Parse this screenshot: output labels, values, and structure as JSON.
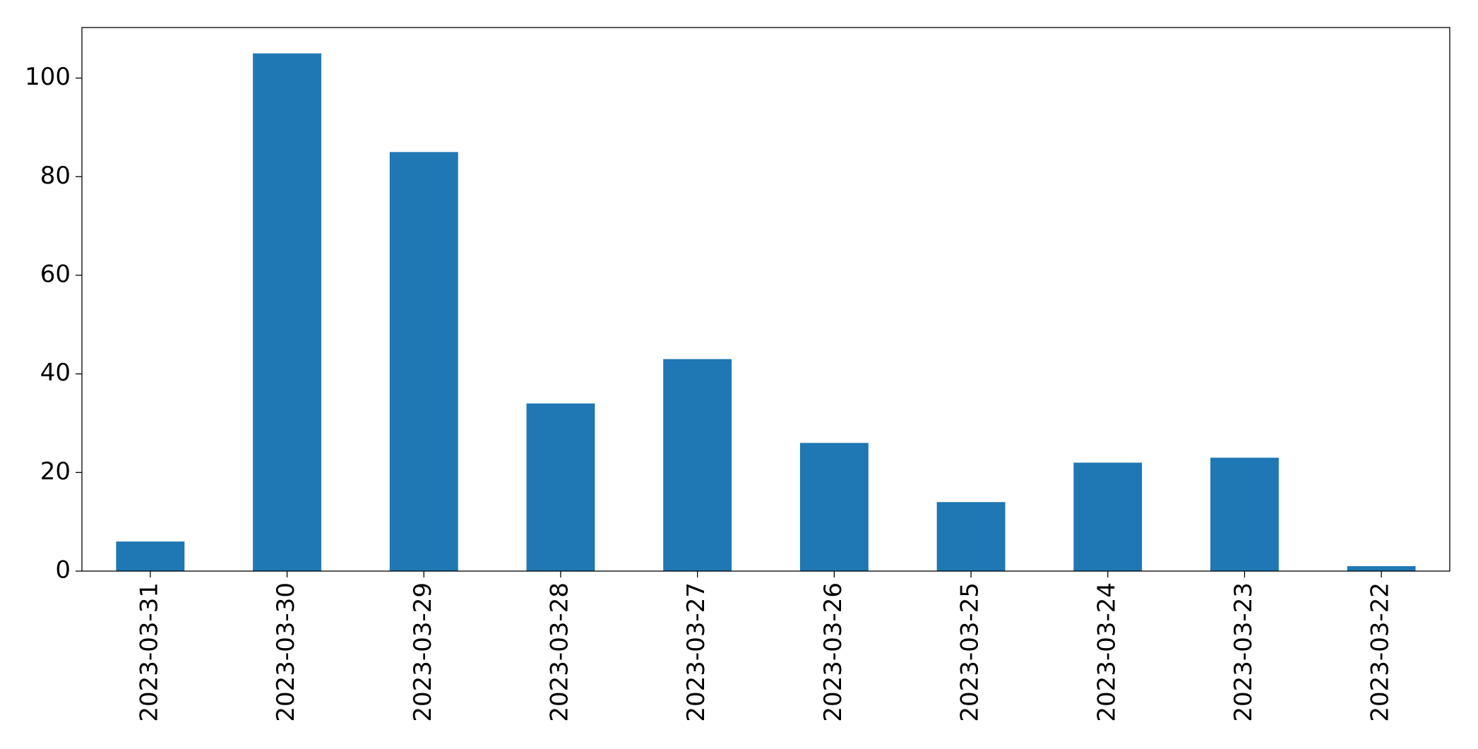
{
  "chart_data": {
    "type": "bar",
    "categories": [
      "2023-03-31",
      "2023-03-30",
      "2023-03-29",
      "2023-03-28",
      "2023-03-27",
      "2023-03-26",
      "2023-03-25",
      "2023-03-24",
      "2023-03-23",
      "2023-03-22"
    ],
    "values": [
      6,
      105,
      85,
      34,
      43,
      26,
      14,
      22,
      23,
      1
    ],
    "color": "#1f77b4",
    "ylim": [
      0,
      110.25
    ],
    "yticks": [
      0,
      20,
      40,
      60,
      80,
      100
    ],
    "grid": false
  }
}
